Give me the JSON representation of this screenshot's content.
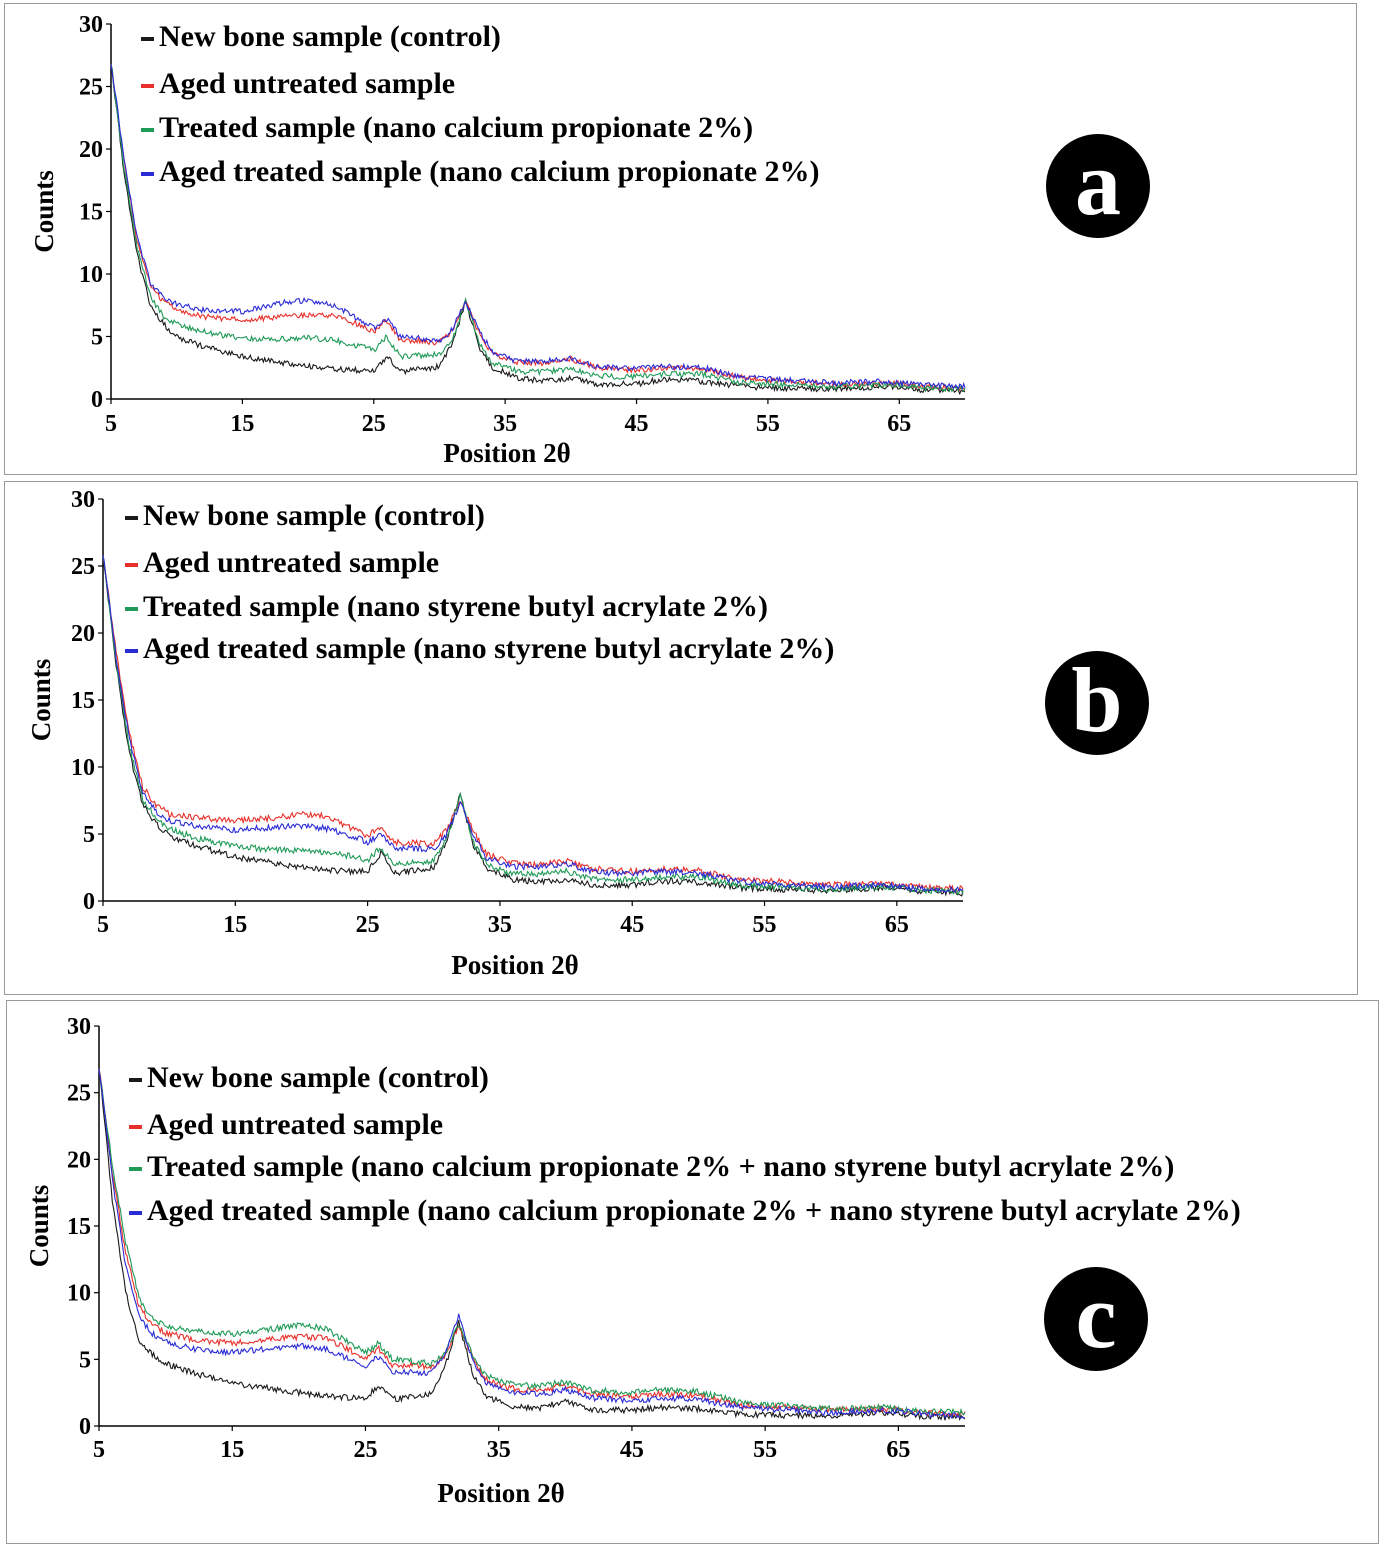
{
  "colors": {
    "control": "#1a1a1a",
    "aged_untreated": "#e8302a",
    "treated": "#1f9a57",
    "aged_treated": "#2b2bd6",
    "badge": "#000000"
  },
  "chart_data": [
    {
      "type": "line",
      "panel_label": "a",
      "xlabel": "Position 2θ",
      "ylabel": "Counts",
      "xlim": [
        5,
        70
      ],
      "ylim": [
        0,
        30
      ],
      "x_ticks": [
        "5",
        "15",
        "25",
        "35",
        "45",
        "55",
        "65"
      ],
      "y_ticks": [
        "0",
        "5",
        "10",
        "15",
        "20",
        "25",
        "30"
      ],
      "legend": [
        "New bone sample (control)",
        "Aged untreated sample",
        "Treated sample (nano calcium propionate 2%)",
        "Aged treated sample (nano calcium propionate 2%)"
      ],
      "x": [
        5,
        6,
        7,
        8,
        9,
        10,
        12,
        15,
        18,
        20,
        22,
        24,
        25,
        26,
        27,
        29,
        30,
        31,
        32,
        33,
        34,
        36,
        38,
        40,
        42,
        45,
        47,
        50,
        53,
        55,
        60,
        64,
        67,
        70
      ],
      "series": [
        {
          "name": "New bone sample (control)",
          "key": "control",
          "values": [
            27,
            18,
            11.5,
            7.5,
            6,
            5,
            4.2,
            3.4,
            2.9,
            2.6,
            2.4,
            2.3,
            2.3,
            3.4,
            2.2,
            2.4,
            2.6,
            4.5,
            7.8,
            4.2,
            2.5,
            1.7,
            1.4,
            1.7,
            1.2,
            1.2,
            1.6,
            1.4,
            1.0,
            0.9,
            0.8,
            1.0,
            0.7,
            0.6
          ]
        },
        {
          "name": "Aged untreated sample",
          "key": "aged_untreated",
          "values": [
            27,
            19,
            12.5,
            9,
            7.8,
            7.2,
            6.6,
            6.3,
            6.6,
            6.7,
            6.7,
            5.9,
            5.4,
            6.3,
            4.7,
            4.6,
            4.5,
            5.5,
            7.7,
            5.3,
            3.6,
            2.9,
            2.9,
            3.2,
            2.5,
            2.3,
            2.5,
            2.4,
            1.7,
            1.5,
            1.2,
            1.3,
            1.0,
            0.9
          ]
        },
        {
          "name": "Treated sample (nano calcium propionate 2%)",
          "key": "treated",
          "values": [
            27,
            18.5,
            12,
            8.2,
            6.6,
            6,
            5.4,
            4.8,
            4.8,
            4.9,
            4.7,
            4.2,
            3.9,
            5.0,
            3.4,
            3.5,
            3.6,
            4.8,
            7.9,
            4.6,
            2.9,
            2.2,
            2.2,
            2.4,
            1.8,
            1.8,
            2.0,
            2.0,
            1.3,
            1.2,
            1.0,
            1.2,
            0.9,
            0.8
          ]
        },
        {
          "name": "Aged treated sample (nano calcium propionate 2%)",
          "key": "aged_treated",
          "values": [
            27,
            19.2,
            12.8,
            9.3,
            8.2,
            7.6,
            7.1,
            7.0,
            7.7,
            7.9,
            7.5,
            6.3,
            5.7,
            6.4,
            5.0,
            4.8,
            4.6,
            5.6,
            7.8,
            5.5,
            3.8,
            3.0,
            3.0,
            3.3,
            2.6,
            2.4,
            2.6,
            2.5,
            1.8,
            1.6,
            1.3,
            1.4,
            1.1,
            1.0
          ]
        }
      ]
    },
    {
      "type": "line",
      "panel_label": "b",
      "xlabel": "Position 2θ",
      "ylabel": "Counts",
      "xlim": [
        5,
        70
      ],
      "ylim": [
        0,
        30
      ],
      "x_ticks": [
        "5",
        "15",
        "25",
        "35",
        "45",
        "55",
        "65"
      ],
      "y_ticks": [
        "0",
        "5",
        "10",
        "15",
        "20",
        "25",
        "30"
      ],
      "legend": [
        "New bone sample (control)",
        "Aged untreated sample",
        "Treated sample (nano styrene butyl acrylate 2%)",
        "Aged treated sample (nano styrene butyl acrylate 2%)"
      ],
      "x": [
        5,
        6,
        7,
        8,
        9,
        10,
        12,
        15,
        18,
        20,
        22,
        24,
        25,
        26,
        27,
        29,
        30,
        31,
        32,
        33,
        34,
        36,
        38,
        40,
        42,
        45,
        47,
        50,
        53,
        55,
        60,
        64,
        67,
        70
      ],
      "series": [
        {
          "name": "New bone sample (control)",
          "key": "control",
          "values": [
            26,
            17.5,
            11,
            7.2,
            5.8,
            4.9,
            4.1,
            3.3,
            2.8,
            2.5,
            2.3,
            2.2,
            2.2,
            3.6,
            2.1,
            2.3,
            2.5,
            4.6,
            8.0,
            4.2,
            2.4,
            1.6,
            1.4,
            1.6,
            1.2,
            1.2,
            1.5,
            1.4,
            1.0,
            0.9,
            0.8,
            1.0,
            0.7,
            0.6
          ]
        },
        {
          "name": "Aged untreated sample",
          "key": "aged_untreated",
          "values": [
            26,
            18.5,
            12.5,
            8.5,
            7.2,
            6.5,
            6.2,
            6.0,
            6.2,
            6.5,
            6.3,
            5.3,
            4.9,
            5.5,
            4.4,
            4.3,
            4.3,
            5.3,
            7.5,
            5.2,
            3.5,
            2.8,
            2.7,
            3.0,
            2.4,
            2.2,
            2.4,
            2.3,
            1.6,
            1.5,
            1.2,
            1.3,
            1.0,
            0.9
          ]
        },
        {
          "name": "Treated sample (nano styrene butyl acrylate 2%)",
          "key": "treated",
          "values": [
            26,
            17.8,
            11.5,
            7.6,
            6.2,
            5.4,
            4.7,
            4.1,
            3.8,
            3.8,
            3.6,
            3.3,
            3.0,
            4.0,
            2.7,
            2.9,
            3.0,
            4.7,
            7.8,
            4.4,
            2.7,
            2.0,
            2.0,
            2.2,
            1.6,
            1.6,
            1.8,
            1.8,
            1.2,
            1.1,
            0.9,
            1.1,
            0.8,
            0.7
          ]
        },
        {
          "name": "Aged treated sample (nano styrene butyl acrylate 2%)",
          "key": "aged_treated",
          "values": [
            26,
            18.2,
            12,
            8.0,
            6.7,
            6.0,
            5.6,
            5.3,
            5.5,
            5.6,
            5.4,
            4.8,
            4.4,
            5.0,
            4.0,
            3.9,
            3.9,
            5.0,
            7.3,
            4.9,
            3.2,
            2.6,
            2.5,
            2.8,
            2.2,
            2.0,
            2.2,
            2.1,
            1.5,
            1.3,
            1.1,
            1.2,
            0.9,
            0.8
          ]
        }
      ]
    },
    {
      "type": "line",
      "panel_label": "c",
      "xlabel": "Position 2θ",
      "ylabel": "Counts",
      "xlim": [
        5,
        70
      ],
      "ylim": [
        0,
        30
      ],
      "x_ticks": [
        "5",
        "15",
        "25",
        "35",
        "45",
        "55",
        "65"
      ],
      "y_ticks": [
        "0",
        "5",
        "10",
        "15",
        "20",
        "25",
        "30"
      ],
      "legend": [
        "New bone sample (control)",
        "Aged untreated sample",
        "Treated sample (nano calcium propionate 2% + nano styrene butyl acrylate 2%)",
        "Aged treated sample (nano calcium propionate 2% + nano styrene butyl acrylate 2%)"
      ],
      "x": [
        5,
        6,
        7,
        8,
        9,
        10,
        12,
        15,
        18,
        20,
        22,
        24,
        25,
        26,
        27,
        29,
        30,
        31,
        32,
        33,
        34,
        36,
        38,
        40,
        42,
        45,
        47,
        50,
        53,
        55,
        60,
        64,
        67,
        70
      ],
      "series": [
        {
          "name": "New bone sample (control)",
          "key": "control",
          "values": [
            27,
            17,
            10,
            6.5,
            5.4,
            4.7,
            4.0,
            3.2,
            2.8,
            2.5,
            2.3,
            2.1,
            2.1,
            3.0,
            2.0,
            2.2,
            2.4,
            4.5,
            7.8,
            4.0,
            2.2,
            1.5,
            1.3,
            1.9,
            1.2,
            1.2,
            1.4,
            1.3,
            0.9,
            0.8,
            0.8,
            1.0,
            0.7,
            0.6
          ]
        },
        {
          "name": "Aged untreated sample",
          "key": "aged_untreated",
          "values": [
            27,
            19,
            13,
            9,
            7.6,
            7.0,
            6.5,
            6.2,
            6.5,
            6.7,
            6.6,
            5.6,
            5.1,
            5.8,
            4.6,
            4.5,
            4.4,
            5.3,
            7.5,
            5.2,
            3.5,
            2.8,
            2.7,
            3.0,
            2.4,
            2.2,
            2.4,
            2.3,
            1.6,
            1.5,
            1.2,
            1.3,
            1.0,
            0.9
          ]
        },
        {
          "name": "Treated sample (nano calcium propionate 2% + nano styrene butyl acrylate 2%)",
          "key": "treated",
          "values": [
            27,
            19.5,
            13.8,
            9.6,
            8.1,
            7.5,
            7.1,
            6.9,
            7.3,
            7.6,
            7.3,
            6.1,
            5.5,
            6.2,
            5.0,
            4.8,
            4.7,
            5.5,
            7.6,
            5.4,
            3.8,
            3.1,
            3.0,
            3.3,
            2.7,
            2.5,
            2.7,
            2.6,
            1.8,
            1.6,
            1.3,
            1.4,
            1.1,
            1.0
          ]
        },
        {
          "name": "Aged treated sample (nano calcium propionate 2% + nano styrene butyl acrylate 2%)",
          "key": "aged_treated",
          "values": [
            27,
            18.5,
            12,
            8.2,
            6.9,
            6.3,
            5.8,
            5.5,
            5.8,
            6.0,
            5.8,
            4.9,
            4.5,
            5.2,
            4.1,
            4.0,
            4.0,
            5.5,
            8.2,
            5.0,
            3.2,
            2.5,
            2.4,
            2.7,
            2.1,
            1.9,
            2.1,
            2.0,
            1.4,
            1.3,
            1.0,
            1.2,
            0.9,
            0.8
          ]
        }
      ]
    }
  ]
}
